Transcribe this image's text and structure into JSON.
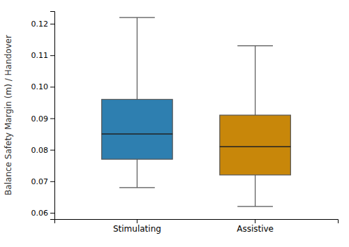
{
  "chart_data": {
    "type": "box",
    "categories": [
      "Stimulating",
      "Assistive"
    ],
    "box_stats": [
      {
        "whislo": 0.068,
        "q1": 0.077,
        "med": 0.085,
        "q3": 0.096,
        "whishi": 0.122
      },
      {
        "whislo": 0.062,
        "q1": 0.072,
        "med": 0.081,
        "q3": 0.091,
        "whishi": 0.113
      }
    ],
    "colors": [
      "#2e7fb0",
      "#c8870a"
    ],
    "ylabel": "Balance Safety Margin (m) / Handover",
    "ylim": [
      0.058,
      0.124
    ],
    "yticks": [
      0.06,
      0.07,
      0.08,
      0.09,
      {
        "value": 0.1,
        "label": "0.10"
      },
      0.11,
      0.12
    ],
    "grid": false
  }
}
